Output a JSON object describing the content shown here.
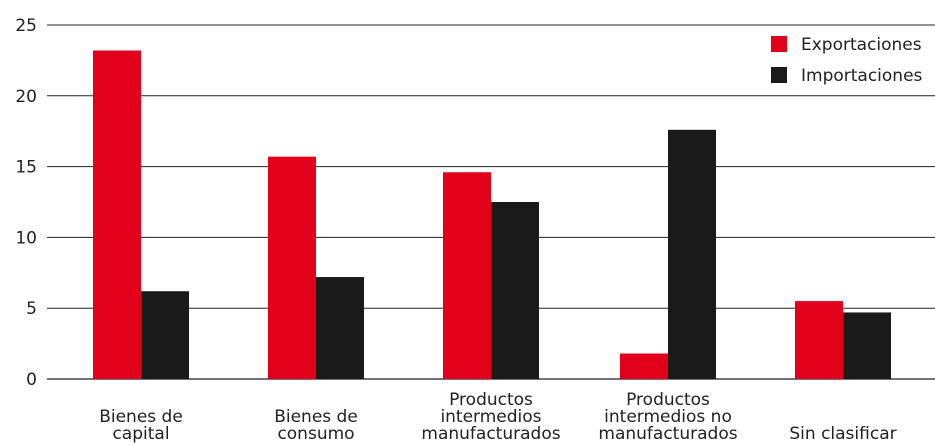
{
  "chart_data": {
    "type": "bar",
    "categories": [
      [
        "Bienes de",
        "capital"
      ],
      [
        "Bienes de",
        "consumo"
      ],
      [
        "Productos",
        "intermedios",
        "manufacturados"
      ],
      [
        "Productos",
        "intermedios no",
        "manufacturados"
      ],
      [
        "Sin clasificar"
      ]
    ],
    "series": [
      {
        "name": "Exportaciones",
        "color": "#e2001a",
        "values": [
          23.2,
          15.7,
          14.6,
          1.8,
          5.5
        ]
      },
      {
        "name": "Importaciones",
        "color": "#1a1a1a",
        "values": [
          6.2,
          7.2,
          12.5,
          17.6,
          4.7
        ]
      }
    ],
    "ylim": [
      0,
      25
    ],
    "yticks": [
      0,
      5,
      10,
      15,
      20,
      25
    ],
    "grid": true,
    "legend_position": "top-right"
  }
}
